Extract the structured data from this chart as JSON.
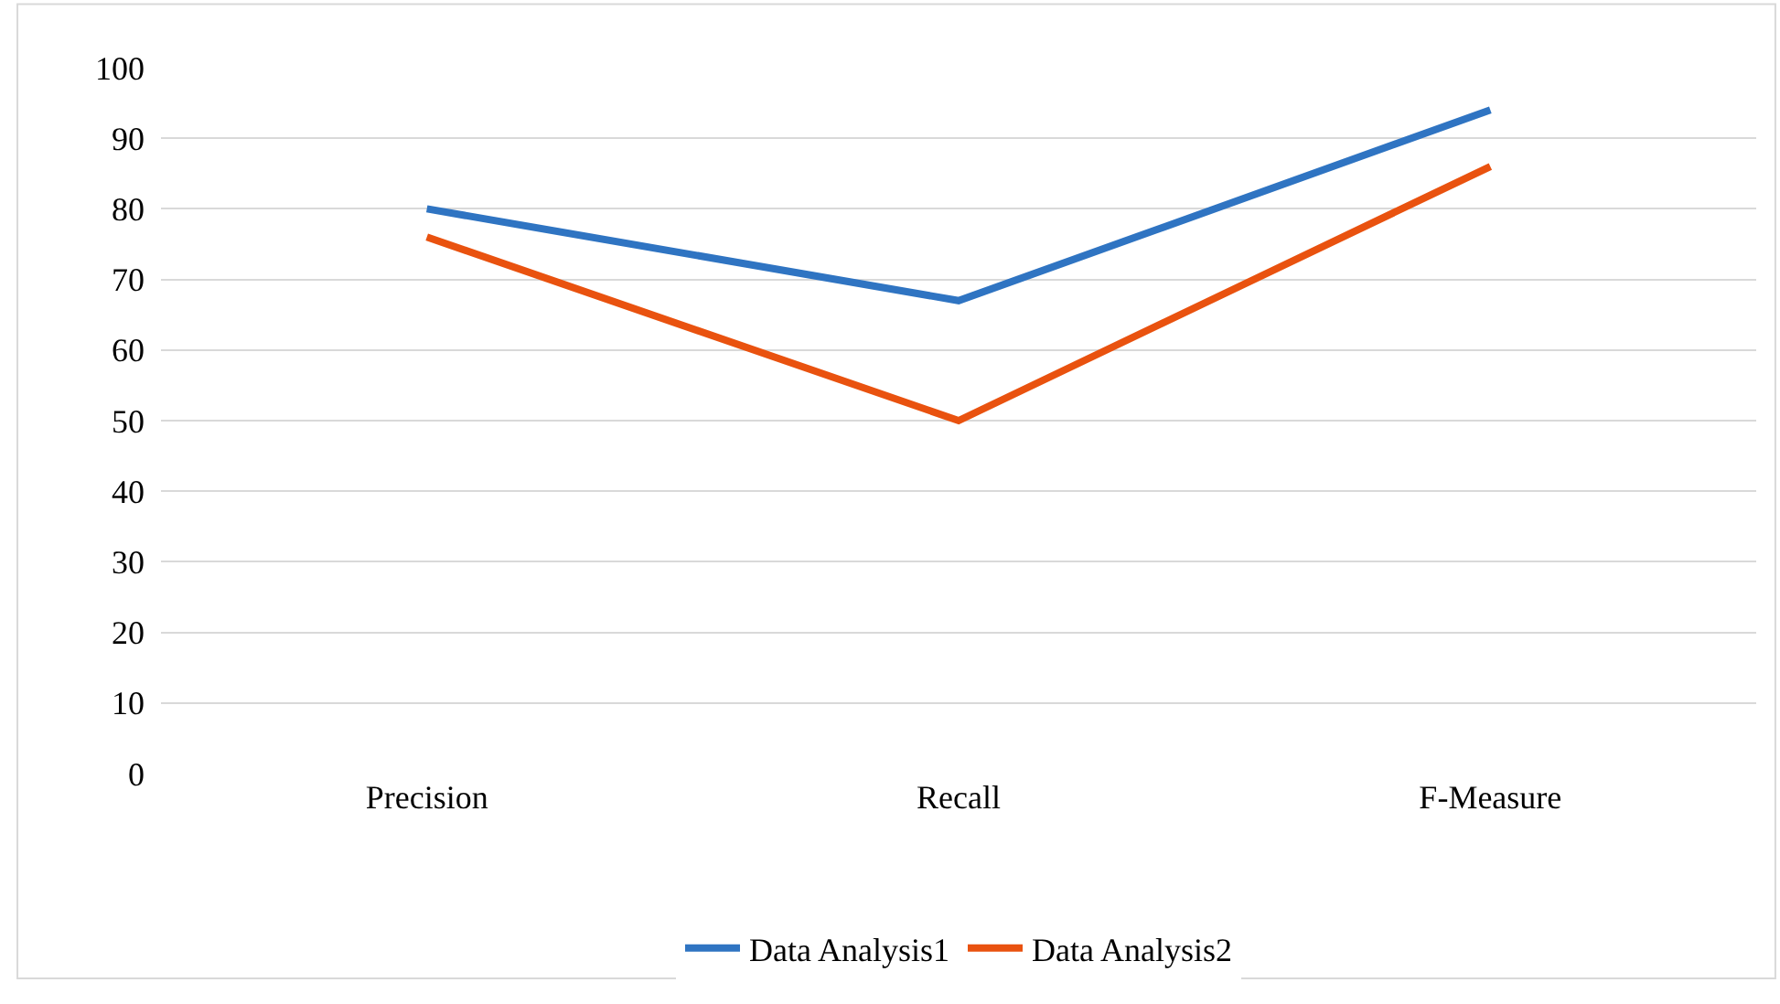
{
  "chart_data": {
    "type": "line",
    "categories": [
      "Precision",
      "Recall",
      "F-Measure"
    ],
    "series": [
      {
        "name": "Data Analysis1",
        "color": "#2f74c2",
        "values": [
          80,
          67,
          94
        ]
      },
      {
        "name": "Data Analysis2",
        "color": "#e9520f",
        "values": [
          76,
          50,
          86
        ]
      }
    ],
    "ylim": [
      0,
      100
    ],
    "yticks": [
      0,
      10,
      20,
      30,
      40,
      50,
      60,
      70,
      80,
      90,
      100
    ],
    "grid": "y",
    "legend": "bottom",
    "marker": "none",
    "line_style": "solid"
  }
}
